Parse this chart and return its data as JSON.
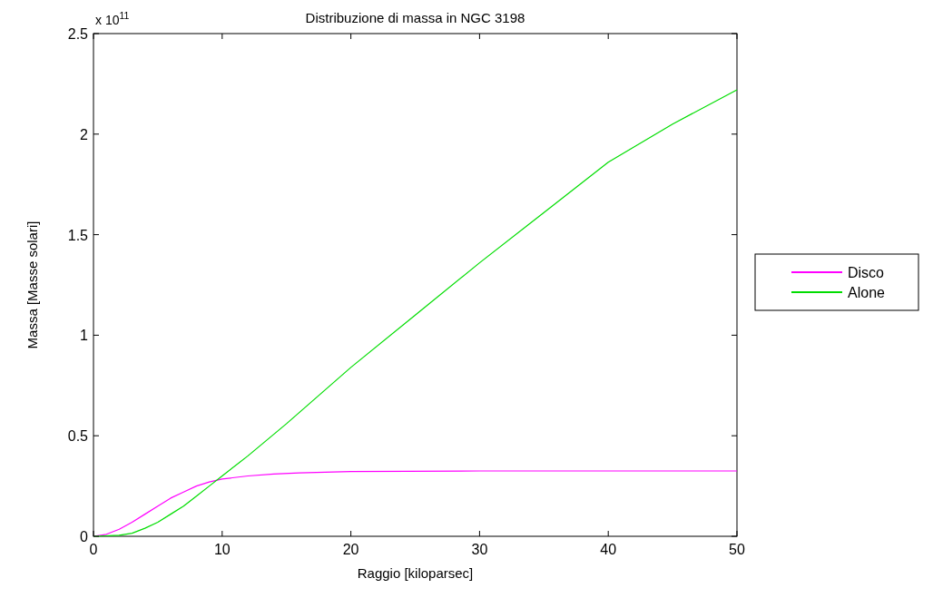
{
  "chart_data": {
    "type": "line",
    "title": "Distribuzione di massa in NGC 3198",
    "xlabel": "Raggio [kiloparsec]",
    "ylabel": "Massa [Masse solari]",
    "annotations": [
      "x 10$^{11}$"
    ],
    "xlim": [
      0,
      50
    ],
    "ylim": [
      0,
      2.5
    ],
    "xticks": [
      0,
      10,
      20,
      30,
      40,
      50
    ],
    "yticks": [
      0,
      0.5,
      1,
      1.5,
      2,
      2.5
    ],
    "legend": "right",
    "grid": false,
    "series": [
      {
        "name": "Disco",
        "color": "#ff00ff",
        "x": [
          0,
          1,
          2,
          3,
          4,
          5,
          6,
          7,
          8,
          9,
          10,
          12,
          14,
          16,
          20,
          30,
          50
        ],
        "values": [
          0,
          0.01,
          0.035,
          0.07,
          0.11,
          0.15,
          0.19,
          0.22,
          0.25,
          0.27,
          0.285,
          0.3,
          0.31,
          0.315,
          0.322,
          0.325,
          0.325
        ]
      },
      {
        "name": "Alone",
        "color": "#00dd00",
        "x": [
          0,
          2,
          3,
          4,
          5,
          6,
          7,
          8,
          9,
          10,
          12,
          15,
          20,
          25,
          30,
          35,
          40,
          45,
          50
        ],
        "values": [
          0,
          0.005,
          0.015,
          0.04,
          0.07,
          0.11,
          0.15,
          0.2,
          0.25,
          0.3,
          0.4,
          0.56,
          0.84,
          1.1,
          1.36,
          1.61,
          1.86,
          2.05,
          2.22
        ]
      }
    ]
  }
}
